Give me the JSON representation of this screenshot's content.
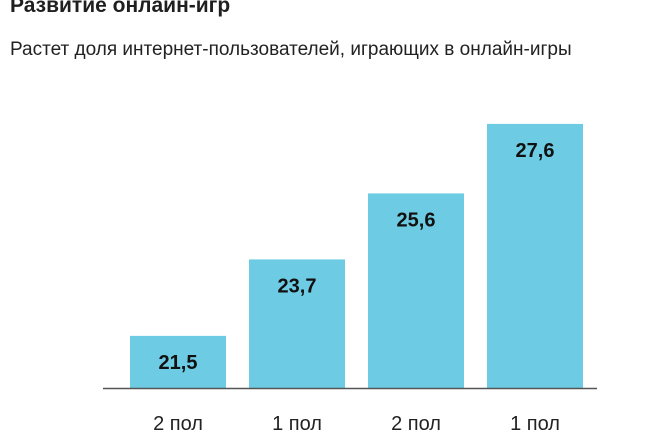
{
  "header": {
    "title": "Развитие онлайн-игр",
    "subtitle": "Растет доля интернет-пользователей, играющих в онлайн-игры"
  },
  "colors": {
    "bar": "#6dcbe3",
    "axis": "#555555"
  },
  "chart_data": {
    "type": "bar",
    "title": "Развитие онлайн-игр",
    "subtitle": "Растет доля интернет-пользователей, играющих в онлайн-игры",
    "categories": [
      "2 пол",
      "1 пол",
      "2 пол",
      "1 пол"
    ],
    "values": [
      21.5,
      23.7,
      25.6,
      27.6
    ],
    "value_labels": [
      "21,5",
      "23,7",
      "25,6",
      "27,6"
    ],
    "ylim": [
      20,
      28
    ],
    "grid": false,
    "legend": "none"
  }
}
